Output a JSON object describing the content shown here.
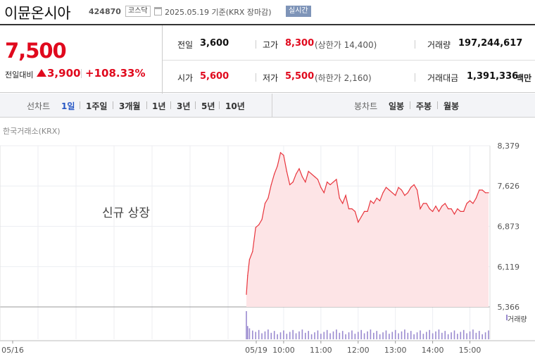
{
  "header": {
    "stock_name": "이뮨온시아",
    "stock_code": "424870",
    "market": "코스닥",
    "date_text": "2025.05.19  기준(KRX 장마감)",
    "realtime": "실시간",
    "calendar_icon": "calendar-icon"
  },
  "price": {
    "current": "7,500",
    "change_label": "전일대비",
    "change_direction_icon": "up-triangle-icon",
    "change_value": "3,900",
    "change_rate": "+108.33%",
    "up_color": "#e0091d"
  },
  "stats": {
    "prev_close_label": "전일",
    "prev_close": "3,600",
    "open_label": "시가",
    "open": "5,600",
    "high_label": "고가",
    "high": "8,300",
    "upper_limit": "(상한가 14,400)",
    "low_label": "저가",
    "low": "5,500",
    "lower_limit": "(하한가 2,160)",
    "volume_label": "거래량",
    "volume": "197,244,617",
    "amount_label": "거래대금",
    "amount": "1,391,336",
    "amount_unit": "백만"
  },
  "tabs": {
    "line_label": "선차트",
    "line_periods": [
      "1일",
      "1주일",
      "3개월",
      "1년",
      "3년",
      "5년",
      "10년"
    ],
    "active": "1일",
    "candle_label": "봉차트",
    "candle_periods": [
      "일봉",
      "주봉",
      "월봉"
    ]
  },
  "exchange": "한국거래소(KRX)",
  "chart_data": {
    "type": "area",
    "new_listing_note": "신규 상장",
    "y_ticks": [
      "8,379",
      "7,626",
      "6,873",
      "6,119",
      "5,366"
    ],
    "ylim": [
      5366,
      8379
    ],
    "x_ticks": [
      "05/16",
      "05/19",
      "10:00",
      "11:00",
      "12:00",
      "13:00",
      "14:00",
      "15:00"
    ],
    "volume_label": "거래량",
    "line_color": "#e8343c",
    "fill_color": "#fde4e6",
    "volume_color": "#9a8ad0",
    "series": [
      {
        "name": "",
        "x": [
          "09:00",
          "09:02",
          "09:05",
          "09:10",
          "09:15",
          "09:20",
          "09:25",
          "09:30",
          "09:35",
          "09:40",
          "09:45",
          "09:50",
          "09:55",
          "10:00",
          "10:05",
          "10:10",
          "10:15",
          "10:20",
          "10:25",
          "10:30",
          "10:35",
          "10:40",
          "10:45",
          "10:50",
          "10:55",
          "11:00",
          "11:05",
          "11:10",
          "11:15",
          "11:20",
          "11:25",
          "11:30",
          "11:35",
          "11:40",
          "11:45",
          "11:50",
          "11:55",
          "12:00",
          "12:05",
          "12:10",
          "12:15",
          "12:20",
          "12:25",
          "12:30",
          "12:35",
          "12:40",
          "12:45",
          "12:50",
          "12:55",
          "13:00",
          "13:05",
          "13:10",
          "13:15",
          "13:20",
          "13:25",
          "13:30",
          "13:35",
          "13:40",
          "13:45",
          "13:50",
          "13:55",
          "14:00",
          "14:05",
          "14:10",
          "14:15",
          "14:20",
          "14:25",
          "14:30",
          "14:35",
          "14:40",
          "14:45",
          "14:50",
          "14:55",
          "15:00",
          "15:05",
          "15:10",
          "15:15",
          "15:20",
          "15:25",
          "15:30"
        ],
        "values": [
          5600,
          5950,
          6250,
          6400,
          6850,
          6900,
          7000,
          7300,
          7400,
          7650,
          7850,
          8000,
          8250,
          8200,
          7900,
          7650,
          7700,
          7850,
          7950,
          7800,
          7700,
          7900,
          7850,
          7800,
          7750,
          7600,
          7500,
          7700,
          7650,
          7700,
          7750,
          7400,
          7300,
          7450,
          7200,
          7200,
          7150,
          6950,
          7050,
          7150,
          7150,
          7350,
          7300,
          7400,
          7350,
          7500,
          7600,
          7550,
          7500,
          7450,
          7600,
          7550,
          7450,
          7500,
          7600,
          7650,
          7550,
          7200,
          7300,
          7300,
          7200,
          7150,
          7250,
          7150,
          7250,
          7300,
          7200,
          7200,
          7100,
          7200,
          7150,
          7150,
          7300,
          7350,
          7300,
          7400,
          7550,
          7550,
          7500,
          7500
        ]
      }
    ]
  }
}
